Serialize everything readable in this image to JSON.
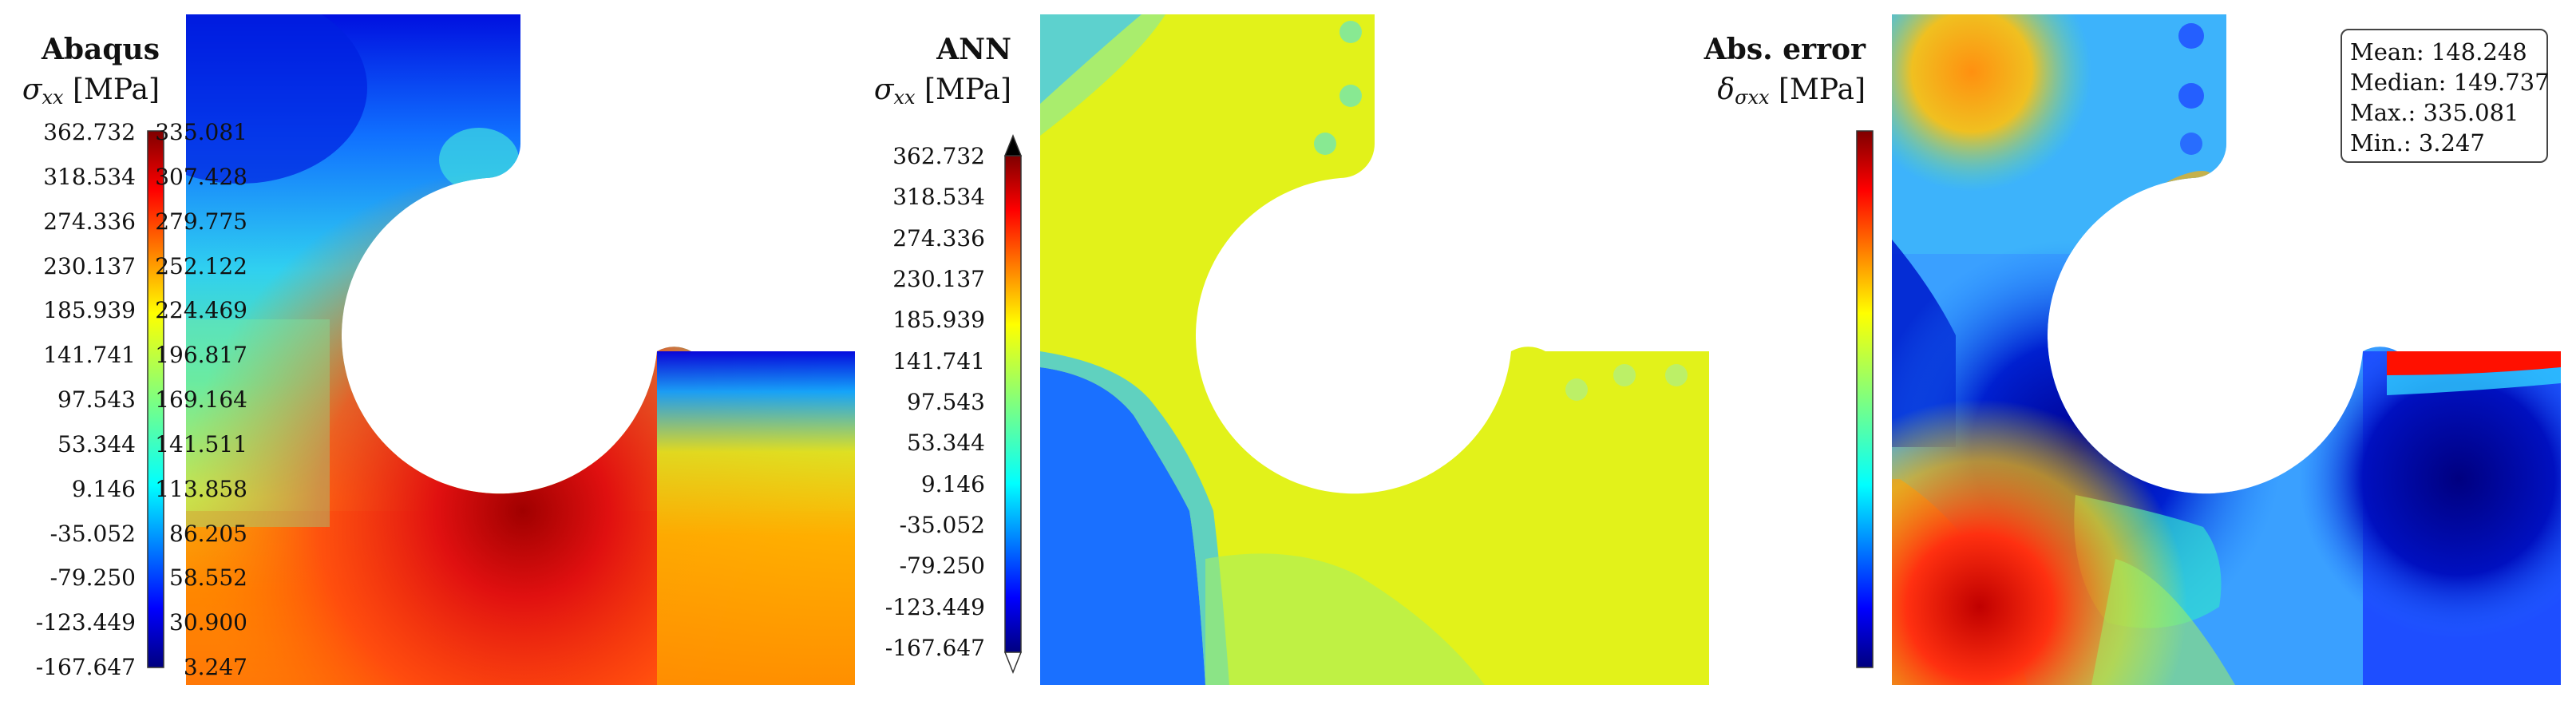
{
  "figure": {
    "panels": [
      {
        "title": "Abaqus",
        "quantity_symbol": "σ",
        "quantity_subscript": "xx",
        "unit": "[MPa]",
        "colorbar_ticks": [
          "362.732",
          "318.534",
          "274.336",
          "230.137",
          "185.939",
          "141.741",
          "97.543",
          "53.344",
          "9.146",
          "-35.052",
          "-79.250",
          "-123.449",
          "-167.647"
        ]
      },
      {
        "title": "ANN",
        "quantity_symbol": "σ",
        "quantity_subscript": "xx",
        "unit": "[MPa]",
        "colorbar_ticks": [
          "362.732",
          "318.534",
          "274.336",
          "230.137",
          "185.939",
          "141.741",
          "97.543",
          "53.344",
          "9.146",
          "-35.052",
          "-79.250",
          "-123.449",
          "-167.647"
        ]
      },
      {
        "title": "Abs. error",
        "quantity_symbol": "δ",
        "quantity_subscript": "σxx",
        "unit": "[MPa]",
        "colorbar_ticks": [
          "335.081",
          "307.428",
          "279.775",
          "252.122",
          "224.469",
          "196.817",
          "169.164",
          "141.511",
          "113.858",
          "86.205",
          "58.552",
          "30.900",
          "3.247"
        ]
      }
    ],
    "stats": {
      "mean": "Mean: 148.248",
      "median": "Median: 149.737",
      "max": "Max.: 335.081",
      "min": "Min.: 3.247"
    },
    "colormap": [
      "#00007f",
      "#0000ff",
      "#007fff",
      "#00ffff",
      "#7fff7f",
      "#ffff00",
      "#ff7f00",
      "#ff0000",
      "#7f0000"
    ]
  }
}
